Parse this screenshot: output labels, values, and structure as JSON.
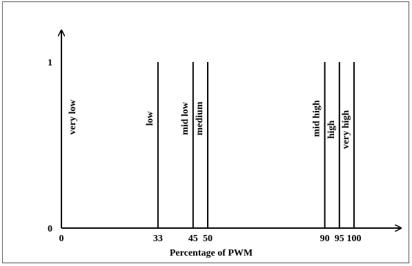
{
  "chart_data": {
    "type": "bar",
    "xlabel": "Percentage of PWM",
    "ylabel": "",
    "xlim": [
      0,
      100
    ],
    "ylim": [
      0,
      1
    ],
    "x_ticks": [
      {
        "value": 0,
        "label": "0"
      },
      {
        "value": 33,
        "label": "33"
      },
      {
        "value": 45,
        "label": "45"
      },
      {
        "value": 50,
        "label": "50"
      },
      {
        "value": 90,
        "label": "90"
      },
      {
        "value": 95,
        "label": "95"
      },
      {
        "value": 100,
        "label": "100"
      }
    ],
    "y_ticks": [
      {
        "value": 0,
        "label": "0"
      },
      {
        "value": 1,
        "label": "1"
      }
    ],
    "bars": [
      {
        "label": "very low",
        "x": 0,
        "value": 1
      },
      {
        "label": "low",
        "x": 33,
        "value": 1
      },
      {
        "label": "mid low",
        "x": 45,
        "value": 1
      },
      {
        "label": "medium",
        "x": 50,
        "value": 1
      },
      {
        "label": "mid high",
        "x": 90,
        "value": 1
      },
      {
        "label": "high",
        "x": 95,
        "value": 1
      },
      {
        "label": "very high",
        "x": 100,
        "value": 1
      }
    ],
    "grid": false,
    "legend": "none"
  }
}
